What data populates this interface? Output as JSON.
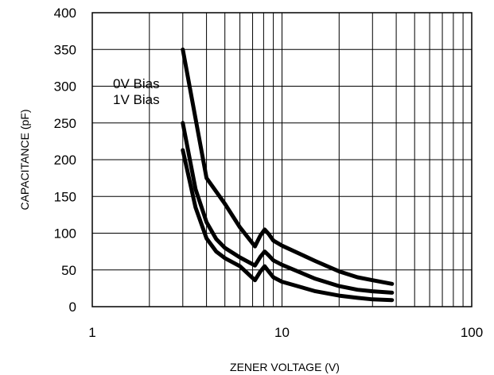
{
  "chart_data": {
    "type": "line",
    "title": "",
    "xlabel": "ZENER VOLTAGE (V)",
    "ylabel": "CAPACITANCE (pF)",
    "xscale": "log",
    "xlim": [
      1,
      100
    ],
    "ylim": [
      0,
      400
    ],
    "x_ticks": [
      "1",
      "10",
      "100"
    ],
    "y_ticks": [
      "0",
      "50",
      "100",
      "150",
      "200",
      "250",
      "300",
      "350",
      "400"
    ],
    "grid": true,
    "annotations": [
      "0V Bias",
      "1V Bias"
    ],
    "series": [
      {
        "x": [
          3.0,
          4.0,
          5.0,
          6.0,
          7.2,
          7.7,
          8.1,
          8.5,
          9.0,
          10,
          15,
          20,
          25,
          30,
          38
        ],
        "values": [
          350,
          175,
          140,
          108,
          82,
          97,
          105,
          99,
          90,
          83,
          62,
          48,
          40,
          36,
          31
        ]
      },
      {
        "x": [
          3.0,
          3.5,
          4.0,
          4.5,
          5.0,
          6.0,
          7.2,
          7.7,
          8.1,
          8.5,
          9.0,
          10,
          15,
          20,
          25,
          30,
          38
        ],
        "values": [
          250,
          160,
          115,
          92,
          80,
          67,
          56,
          68,
          75,
          70,
          63,
          57,
          38,
          28,
          23,
          21,
          19
        ]
      },
      {
        "x": [
          3.0,
          3.5,
          4.0,
          4.5,
          5.0,
          6.0,
          7.2,
          7.7,
          8.1,
          8.5,
          9.0,
          10,
          15,
          20,
          25,
          30,
          38
        ],
        "values": [
          213,
          135,
          93,
          75,
          66,
          55,
          36,
          48,
          55,
          48,
          40,
          34,
          21,
          15,
          12,
          10,
          9
        ]
      }
    ]
  }
}
